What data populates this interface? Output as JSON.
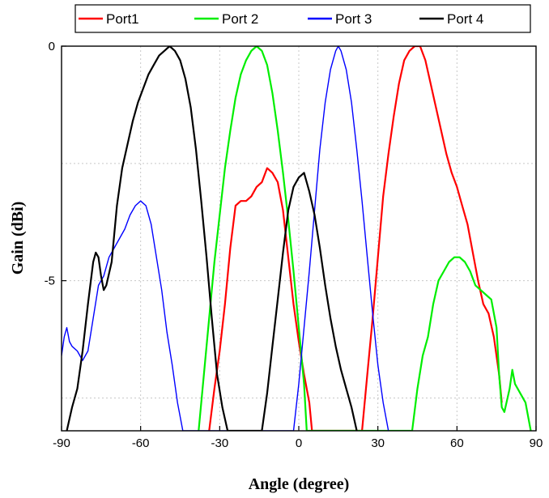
{
  "chart_data": {
    "type": "line",
    "title": "",
    "xlabel": "Angle (degree)",
    "ylabel": "Gain (dBi)",
    "xlim": [
      -90,
      90
    ],
    "ylim": [
      -8.2,
      0
    ],
    "x_ticks": [
      -90,
      -60,
      -30,
      0,
      30,
      60,
      90
    ],
    "y_ticks": [
      -5,
      0
    ],
    "grid": true,
    "legend_position": "top",
    "series": [
      {
        "name": "Port1",
        "color": "#ff0000",
        "points": [
          [
            -34,
            -8.2
          ],
          [
            -32,
            -7.3
          ],
          [
            -30,
            -6.5
          ],
          [
            -28,
            -5.5
          ],
          [
            -26,
            -4.3
          ],
          [
            -24,
            -3.4
          ],
          [
            -22,
            -3.3
          ],
          [
            -20,
            -3.3
          ],
          [
            -18,
            -3.2
          ],
          [
            -16,
            -3.0
          ],
          [
            -14,
            -2.9
          ],
          [
            -12,
            -2.6
          ],
          [
            -10,
            -2.7
          ],
          [
            -8,
            -2.9
          ],
          [
            -6,
            -3.5
          ],
          [
            -4,
            -4.5
          ],
          [
            -2,
            -5.5
          ],
          [
            0,
            -6.3
          ],
          [
            2,
            -7.0
          ],
          [
            4,
            -7.6
          ],
          [
            5,
            -8.2
          ],
          [
            24,
            -8.2
          ],
          [
            26,
            -7.0
          ],
          [
            28,
            -5.8
          ],
          [
            30,
            -4.5
          ],
          [
            32,
            -3.2
          ],
          [
            34,
            -2.3
          ],
          [
            36,
            -1.5
          ],
          [
            38,
            -0.8
          ],
          [
            40,
            -0.3
          ],
          [
            42,
            -0.1
          ],
          [
            44,
            0.0
          ],
          [
            46,
            0.0
          ],
          [
            48,
            -0.3
          ],
          [
            50,
            -0.8
          ],
          [
            52,
            -1.3
          ],
          [
            54,
            -1.8
          ],
          [
            56,
            -2.3
          ],
          [
            58,
            -2.7
          ],
          [
            60,
            -3.0
          ],
          [
            62,
            -3.4
          ],
          [
            64,
            -3.8
          ],
          [
            66,
            -4.4
          ],
          [
            68,
            -5.0
          ],
          [
            70,
            -5.5
          ],
          [
            72,
            -5.7
          ],
          [
            74,
            -6.2
          ],
          [
            76,
            -7.0
          ],
          [
            77,
            -7.6
          ]
        ]
      },
      {
        "name": "Port 2",
        "color": "#00ee00",
        "points": [
          [
            -38,
            -8.2
          ],
          [
            -36,
            -7.0
          ],
          [
            -34,
            -5.8
          ],
          [
            -32,
            -4.6
          ],
          [
            -30,
            -3.6
          ],
          [
            -28,
            -2.6
          ],
          [
            -26,
            -1.8
          ],
          [
            -24,
            -1.1
          ],
          [
            -22,
            -0.6
          ],
          [
            -20,
            -0.3
          ],
          [
            -18,
            -0.1
          ],
          [
            -16,
            0.0
          ],
          [
            -14,
            -0.1
          ],
          [
            -12,
            -0.4
          ],
          [
            -10,
            -1.0
          ],
          [
            -8,
            -1.8
          ],
          [
            -6,
            -2.7
          ],
          [
            -4,
            -3.7
          ],
          [
            -2,
            -4.8
          ],
          [
            0,
            -6.0
          ],
          [
            2,
            -7.2
          ],
          [
            3,
            -8.2
          ],
          [
            43,
            -8.2
          ],
          [
            45,
            -7.3
          ],
          [
            47,
            -6.6
          ],
          [
            49,
            -6.2
          ],
          [
            51,
            -5.5
          ],
          [
            53,
            -5.0
          ],
          [
            55,
            -4.8
          ],
          [
            57,
            -4.6
          ],
          [
            59,
            -4.5
          ],
          [
            61,
            -4.5
          ],
          [
            63,
            -4.6
          ],
          [
            65,
            -4.8
          ],
          [
            67,
            -5.1
          ],
          [
            69,
            -5.2
          ],
          [
            71,
            -5.3
          ],
          [
            73,
            -5.4
          ],
          [
            75,
            -6.0
          ],
          [
            76,
            -7.0
          ],
          [
            77,
            -7.7
          ],
          [
            78,
            -7.8
          ],
          [
            80,
            -7.3
          ],
          [
            81,
            -6.9
          ],
          [
            82,
            -7.2
          ],
          [
            84,
            -7.4
          ],
          [
            86,
            -7.6
          ],
          [
            88,
            -8.2
          ]
        ]
      },
      {
        "name": "Port 3",
        "color": "#0000ff",
        "points": [
          [
            -90,
            -6.6
          ],
          [
            -89,
            -6.2
          ],
          [
            -88,
            -6.0
          ],
          [
            -87,
            -6.3
          ],
          [
            -86,
            -6.4
          ],
          [
            -84,
            -6.5
          ],
          [
            -82,
            -6.7
          ],
          [
            -80,
            -6.5
          ],
          [
            -78,
            -5.8
          ],
          [
            -76,
            -5.1
          ],
          [
            -74,
            -4.9
          ],
          [
            -72,
            -4.5
          ],
          [
            -70,
            -4.3
          ],
          [
            -68,
            -4.1
          ],
          [
            -66,
            -3.9
          ],
          [
            -64,
            -3.6
          ],
          [
            -62,
            -3.4
          ],
          [
            -60,
            -3.3
          ],
          [
            -58,
            -3.4
          ],
          [
            -56,
            -3.8
          ],
          [
            -54,
            -4.5
          ],
          [
            -52,
            -5.2
          ],
          [
            -50,
            -6.1
          ],
          [
            -48,
            -6.8
          ],
          [
            -46,
            -7.6
          ],
          [
            -44,
            -8.2
          ],
          [
            -2,
            -8.2
          ],
          [
            0,
            -7.2
          ],
          [
            2,
            -6.0
          ],
          [
            4,
            -4.8
          ],
          [
            6,
            -3.5
          ],
          [
            8,
            -2.2
          ],
          [
            10,
            -1.2
          ],
          [
            12,
            -0.5
          ],
          [
            14,
            -0.1
          ],
          [
            15,
            0.0
          ],
          [
            16,
            -0.1
          ],
          [
            18,
            -0.5
          ],
          [
            20,
            -1.2
          ],
          [
            22,
            -2.2
          ],
          [
            24,
            -3.3
          ],
          [
            26,
            -4.5
          ],
          [
            28,
            -5.7
          ],
          [
            30,
            -6.8
          ],
          [
            32,
            -7.6
          ],
          [
            34,
            -8.2
          ]
        ]
      },
      {
        "name": "Port 4",
        "color": "#000000",
        "points": [
          [
            -88,
            -8.2
          ],
          [
            -86,
            -7.7
          ],
          [
            -84,
            -7.3
          ],
          [
            -82,
            -6.5
          ],
          [
            -80,
            -5.5
          ],
          [
            -78,
            -4.6
          ],
          [
            -77,
            -4.4
          ],
          [
            -76,
            -4.5
          ],
          [
            -75,
            -4.9
          ],
          [
            -74,
            -5.2
          ],
          [
            -73,
            -5.1
          ],
          [
            -71,
            -4.6
          ],
          [
            -69,
            -3.4
          ],
          [
            -67,
            -2.6
          ],
          [
            -65,
            -2.1
          ],
          [
            -63,
            -1.6
          ],
          [
            -61,
            -1.2
          ],
          [
            -59,
            -0.9
          ],
          [
            -57,
            -0.6
          ],
          [
            -55,
            -0.4
          ],
          [
            -53,
            -0.2
          ],
          [
            -51,
            -0.1
          ],
          [
            -49,
            0.0
          ],
          [
            -47,
            -0.1
          ],
          [
            -45,
            -0.3
          ],
          [
            -43,
            -0.7
          ],
          [
            -41,
            -1.3
          ],
          [
            -39,
            -2.2
          ],
          [
            -37,
            -3.3
          ],
          [
            -35,
            -4.5
          ],
          [
            -33,
            -5.8
          ],
          [
            -31,
            -7.0
          ],
          [
            -29,
            -7.7
          ],
          [
            -27,
            -8.2
          ],
          [
            -14,
            -8.2
          ],
          [
            -12,
            -7.4
          ],
          [
            -10,
            -6.4
          ],
          [
            -8,
            -5.4
          ],
          [
            -6,
            -4.4
          ],
          [
            -4,
            -3.5
          ],
          [
            -2,
            -3.0
          ],
          [
            0,
            -2.8
          ],
          [
            2,
            -2.7
          ],
          [
            4,
            -3.1
          ],
          [
            6,
            -3.6
          ],
          [
            8,
            -4.3
          ],
          [
            10,
            -5.1
          ],
          [
            12,
            -5.8
          ],
          [
            14,
            -6.4
          ],
          [
            16,
            -6.9
          ],
          [
            18,
            -7.3
          ],
          [
            20,
            -7.7
          ],
          [
            22,
            -8.2
          ]
        ]
      }
    ]
  }
}
